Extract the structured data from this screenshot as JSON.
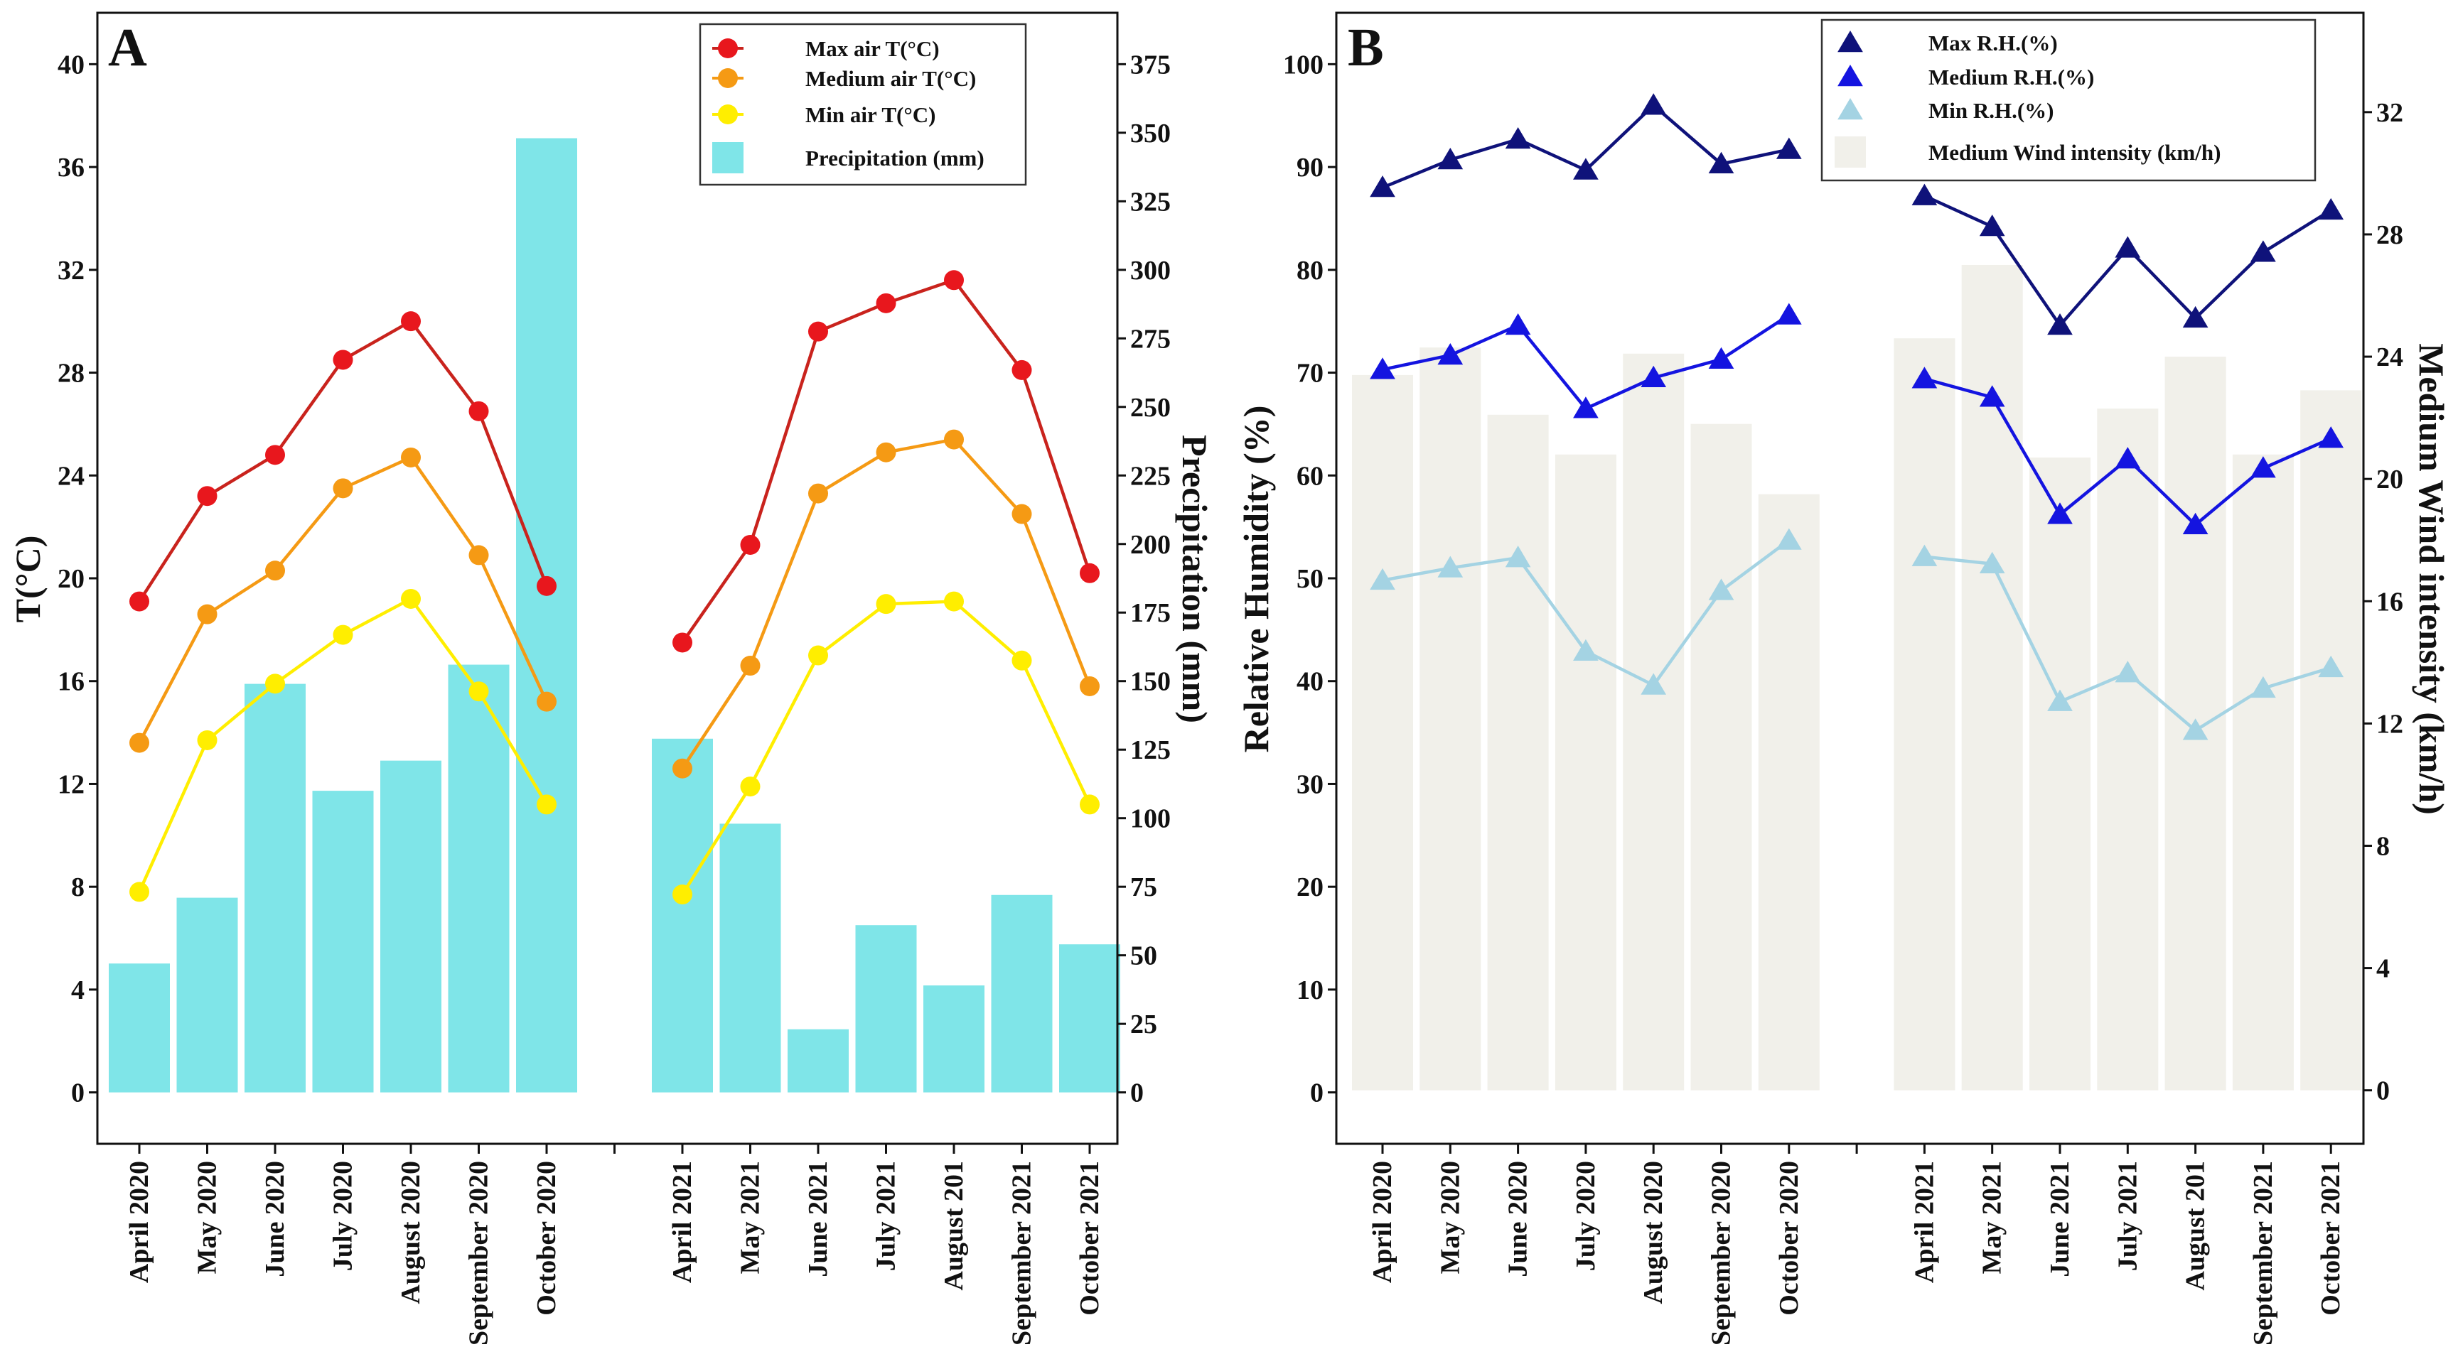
{
  "chart_data": [
    {
      "type": "bar+line",
      "panel_label": "A",
      "categories": [
        "April 2020",
        "May 2020",
        "June 2020",
        "July 2020",
        "August 2020",
        "September 2020",
        "October 2020",
        "",
        "April 2021",
        "May 2021",
        "June 2021",
        "July 2021",
        "August 201",
        "September 2021",
        "October 2021"
      ],
      "ylabel_left": "T(°C)",
      "ylabel_right": "Precipitation (mm)",
      "yticks_left": [
        0,
        4,
        8,
        12,
        16,
        20,
        24,
        28,
        32,
        36,
        40
      ],
      "yticks_right": [
        0,
        25,
        50,
        75,
        100,
        125,
        150,
        175,
        200,
        225,
        250,
        275,
        300,
        325,
        350,
        375
      ],
      "ylim_left": [
        -2,
        42
      ],
      "ylim_right": [
        -18.75,
        393.75
      ],
      "series": [
        {
          "name": "Max air T(°C)",
          "kind": "line",
          "axis": "left",
          "color": "#e8171d",
          "line_color": "#c9231d",
          "marker": "circle",
          "values": [
            19.1,
            23.2,
            24.8,
            28.5,
            30.0,
            26.5,
            19.7,
            null,
            17.5,
            21.3,
            29.6,
            30.7,
            31.6,
            28.1,
            20.2
          ]
        },
        {
          "name": "Medium air T(°C)",
          "kind": "line",
          "axis": "left",
          "color": "#f59a14",
          "line_color": "#f59a14",
          "marker": "circle",
          "values": [
            13.6,
            18.6,
            20.3,
            23.5,
            24.7,
            20.9,
            15.2,
            null,
            12.6,
            16.6,
            23.3,
            24.9,
            25.4,
            22.5,
            15.8
          ]
        },
        {
          "name": "Min air T(°C)",
          "kind": "line",
          "axis": "left",
          "color": "#ffee00",
          "line_color": "#ffee00",
          "marker": "circle",
          "values": [
            7.8,
            13.7,
            15.9,
            17.8,
            19.2,
            15.6,
            11.2,
            null,
            7.7,
            11.9,
            17.0,
            19.0,
            19.1,
            16.8,
            11.2
          ]
        },
        {
          "name": "Precipitation (mm)",
          "kind": "bar",
          "axis": "right",
          "color": "#7fe5e8",
          "values": [
            47,
            71,
            149,
            110,
            121,
            156,
            348,
            null,
            129,
            98,
            23,
            61,
            39,
            72,
            54
          ]
        }
      ]
    },
    {
      "type": "bar+line",
      "panel_label": "B",
      "categories": [
        "April 2020",
        "May 2020",
        "June 2020",
        "July 2020",
        "August 2020",
        "September 2020",
        "October 2020",
        "",
        "April 2021",
        "May 2021",
        "June 2021",
        "July 2021",
        "August 201",
        "September 2021",
        "October 2021"
      ],
      "ylabel_left": "Relative Humidity (%)",
      "ylabel_right": "Medium Wind intensity (km/h)",
      "yticks_left": [
        0,
        10,
        20,
        30,
        40,
        50,
        60,
        70,
        80,
        90,
        100
      ],
      "yticks_right": [
        0,
        4,
        8,
        12,
        16,
        20,
        24,
        28,
        32
      ],
      "ylim_left": [
        -5,
        105
      ],
      "ylim_right": [
        -1.75,
        35.25
      ],
      "series": [
        {
          "name": "Max R.H.(%)",
          "kind": "line",
          "axis": "left",
          "color": "#0f127a",
          "marker": "triangle",
          "values": [
            88,
            90.7,
            92.7,
            89.7,
            96,
            90.3,
            91.7,
            null,
            87.2,
            84.2,
            74.6,
            82.1,
            75.3,
            81.7,
            85.8
          ]
        },
        {
          "name": "Medium R.H.(%)",
          "kind": "line",
          "axis": "left",
          "color": "#1414e0",
          "marker": "triangle",
          "values": [
            70.3,
            71.7,
            74.6,
            66.5,
            69.5,
            71.3,
            75.6,
            null,
            69.4,
            67.6,
            56.2,
            61.6,
            55.2,
            60.7,
            63.6
          ]
        },
        {
          "name": "Min R.H.(%)",
          "kind": "line",
          "axis": "left",
          "color": "#a4d3e3",
          "marker": "triangle",
          "values": [
            49.8,
            51,
            52,
            42.9,
            39.6,
            48.8,
            53.7,
            null,
            52.1,
            51.4,
            38,
            40.8,
            35.2,
            39.3,
            41.3
          ]
        },
        {
          "name": "Medium Wind intensity (km/h)",
          "kind": "bar",
          "axis": "right",
          "color": "#f1f0ea",
          "values": [
            23.4,
            24.3,
            22.1,
            20.8,
            24.1,
            21.8,
            19.5,
            null,
            24.6,
            27.0,
            20.7,
            22.3,
            24.0,
            20.8,
            22.9
          ]
        }
      ]
    }
  ]
}
